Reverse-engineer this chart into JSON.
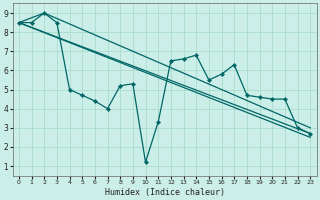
{
  "xlabel": "Humidex (Indice chaleur)",
  "bg_color": "#cceee8",
  "grid_color": "#aaddcc",
  "line_color": "#006666",
  "xlim": [
    -0.5,
    23.5
  ],
  "ylim": [
    0.5,
    9.5
  ],
  "xticks": [
    0,
    1,
    2,
    3,
    4,
    5,
    6,
    7,
    8,
    9,
    10,
    11,
    12,
    13,
    14,
    15,
    16,
    17,
    18,
    19,
    20,
    21,
    22,
    23
  ],
  "yticks": [
    1,
    2,
    3,
    4,
    5,
    6,
    7,
    8,
    9
  ],
  "main_line": {
    "x": [
      0,
      1,
      2,
      3,
      4,
      5,
      6,
      7,
      8,
      9,
      10,
      11,
      12,
      13,
      14,
      15,
      16,
      17,
      18,
      19,
      20,
      21,
      22,
      23
    ],
    "y": [
      8.5,
      8.5,
      9.0,
      8.5,
      5.0,
      4.7,
      4.4,
      4.0,
      5.2,
      5.3,
      1.2,
      3.3,
      6.5,
      6.6,
      6.8,
      5.5,
      5.8,
      6.3,
      4.7,
      4.6,
      4.5,
      4.5,
      3.0,
      2.7
    ]
  },
  "trend_line1": {
    "x": [
      0,
      23
    ],
    "y": [
      8.5,
      2.7
    ]
  },
  "trend_line2": {
    "x": [
      0,
      2,
      23
    ],
    "y": [
      8.5,
      9.0,
      3.0
    ]
  },
  "trend_line3": {
    "x": [
      0,
      23
    ],
    "y": [
      8.5,
      2.5
    ]
  }
}
